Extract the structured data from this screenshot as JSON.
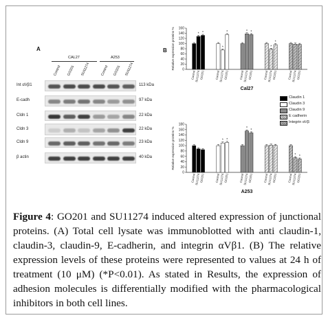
{
  "panel_a": {
    "label": "A",
    "cell_lines": [
      "CAL27",
      "A253"
    ],
    "lanes": [
      "Control",
      "GO201",
      "SU11274",
      "Control",
      "GO201",
      "SU11274"
    ],
    "rows": [
      {
        "name": "Int αVβ1",
        "kda": "113 kDa"
      },
      {
        "name": "E-cadh",
        "kda": "97 kDa"
      },
      {
        "name": "Cldn 1",
        "kda": "22 kDa"
      },
      {
        "name": "Cldn 3",
        "kda": "22 kDa"
      },
      {
        "name": "Cldn 9",
        "kda": "23 kDa"
      },
      {
        "name": "β actin",
        "kda": "40 kDa"
      }
    ]
  },
  "panel_b": {
    "label": "B"
  },
  "chart_data": [
    {
      "type": "bar",
      "title": "Cal27",
      "ylabel": "Relative expression proteins %",
      "ylim": [
        0,
        160
      ],
      "yticks": [
        0,
        20,
        40,
        60,
        80,
        100,
        120,
        140,
        160
      ],
      "group_labels": [
        "Control",
        "SU11274",
        "GO201"
      ],
      "groups": [
        {
          "name": "Claudin 1",
          "values": [
            100,
            128,
            132
          ],
          "sig": [
            false,
            true,
            true
          ]
        },
        {
          "name": "Claudin 3",
          "values": [
            100,
            75,
            135
          ],
          "sig": [
            false,
            true,
            true
          ]
        },
        {
          "name": "Claudin 9",
          "values": [
            100,
            138,
            135
          ],
          "sig": [
            false,
            true,
            true
          ]
        },
        {
          "name": "E-cadherin",
          "values": [
            100,
            78,
            96
          ],
          "sig": [
            false,
            true,
            true
          ]
        },
        {
          "name": "Integrin αVβ",
          "values": [
            100,
            98,
            97
          ],
          "sig": [
            false,
            false,
            false
          ]
        }
      ]
    },
    {
      "type": "bar",
      "title": "A253",
      "ylabel": "Relative expression proteins %",
      "ylim": [
        0,
        180
      ],
      "yticks": [
        0,
        20,
        40,
        60,
        80,
        100,
        120,
        140,
        160,
        180
      ],
      "group_labels": [
        "Control",
        "SU11274",
        "GO201"
      ],
      "groups": [
        {
          "name": "Claudin 1",
          "values": [
            100,
            88,
            85
          ],
          "sig": [
            false,
            false,
            false
          ]
        },
        {
          "name": "Claudin 3",
          "values": [
            100,
            110,
            112
          ],
          "sig": [
            false,
            true,
            true
          ]
        },
        {
          "name": "Claudin 9",
          "values": [
            100,
            155,
            148
          ],
          "sig": [
            false,
            true,
            true
          ]
        },
        {
          "name": "E-cadherin",
          "values": [
            100,
            102,
            101
          ],
          "sig": [
            false,
            false,
            false
          ]
        },
        {
          "name": "Integrin αVβ",
          "values": [
            100,
            55,
            50
          ],
          "sig": [
            false,
            true,
            true
          ]
        }
      ]
    }
  ],
  "legend": [
    {
      "name": "Claudin 1",
      "color": "#000000",
      "pattern": "solid"
    },
    {
      "name": "Claudin 3",
      "color": "#ffffff",
      "pattern": "solid"
    },
    {
      "name": "Claudin 9",
      "color": "#8a8a8a",
      "pattern": "solid"
    },
    {
      "name": "E cadherin",
      "color": "#d9d9d9",
      "pattern": "hatch"
    },
    {
      "name": "Integrin αVβ",
      "color": "#b0b0b0",
      "pattern": "hatch"
    }
  ],
  "caption": {
    "label": "Figure 4",
    "text": ": GO201 and SU11274 induced altered expression of junctional proteins. (A) Total cell lysate was immunoblotted with anti claudin-1, claudin-3, claudin-9, E-cadherin, and integrin αVβ1. (B) The relative expression levels of these proteins were represented to values at 24 h of treatment (10 μM) (*P<0.01). As stated in Results, the expression of adhesion molecules is differentially modified with the pharmacological inhibitors in both cell lines."
  }
}
